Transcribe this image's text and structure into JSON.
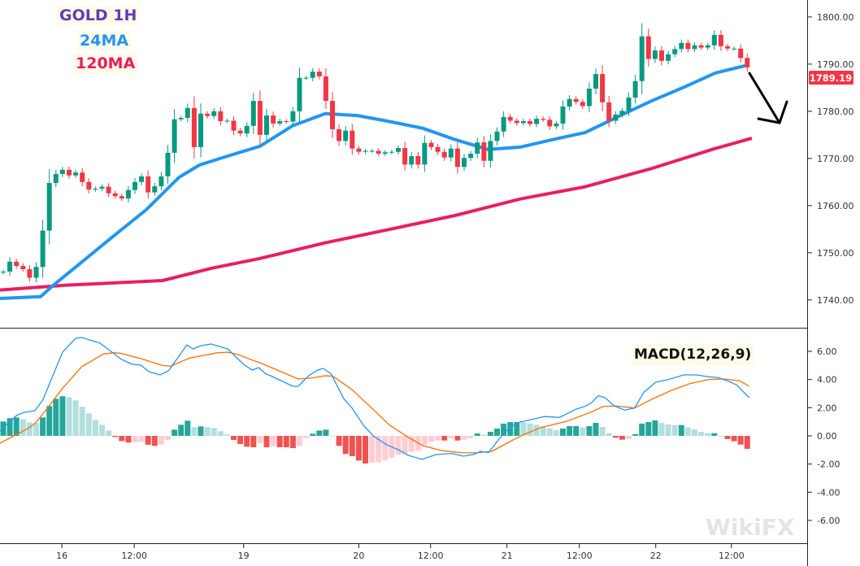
{
  "labels": {
    "title": "GOLD 1H",
    "ma24": "24MA",
    "ma120": "120MA",
    "macd": "MACD(12,26,9)",
    "watermark": "WikiFX"
  },
  "colors": {
    "title": "#673ab7",
    "ma24": "#2196f3",
    "ma120": "#e91e63",
    "up": "#089981",
    "down": "#f23645",
    "hist_up_strong": "#26a69a",
    "hist_up_weak": "#b2dfdb",
    "hist_down_strong": "#ef5350",
    "hist_down_weak": "#ffcdd2",
    "macd": "#2196f3",
    "signal": "#ff6d00",
    "last_price": "#f23645"
  },
  "chart_data": {
    "type": "candlestick",
    "title": "GOLD 1H",
    "last_price": "1789.19",
    "price_axis": {
      "ylim": [
        1734.1,
        1803.6
      ],
      "ticks": [
        "1740.00",
        "1750.00",
        "1760.00",
        "1770.00",
        "1780.00",
        "1790.00",
        "1800.00"
      ]
    },
    "macd_axis": {
      "ylim": [
        -7.62,
        7.56
      ],
      "ticks": [
        "-6.00",
        "-4.00",
        "-2.00",
        "0.00",
        "2.00",
        "4.00",
        "6.00"
      ]
    },
    "x_ticks": [
      {
        "label": "16",
        "index": 8.9
      },
      {
        "label": "12:00",
        "index": 19.9
      },
      {
        "label": "19",
        "index": 36.5
      },
      {
        "label": "20",
        "index": 54
      },
      {
        "label": "12:00",
        "index": 64.9
      },
      {
        "label": "21",
        "index": 76.5
      },
      {
        "label": "12:00",
        "index": 87.5
      },
      {
        "label": "22",
        "index": 99.1
      },
      {
        "label": "12:00",
        "index": 110.6
      }
    ],
    "first_open": 1745.8,
    "close": [
      1746.0,
      1748.1,
      1747.2,
      1746.5,
      1744.7,
      1747.0,
      1754.7,
      1764.8,
      1766.7,
      1767.6,
      1766.4,
      1767.0,
      1765.0,
      1763.4,
      1763.6,
      1764.0,
      1762.6,
      1762.0,
      1761.5,
      1763.3,
      1765.0,
      1766.2,
      1762.8,
      1764.1,
      1766.2,
      1771.2,
      1778.3,
      1778.6,
      1780.7,
      1772.4,
      1779.5,
      1779.0,
      1780.0,
      1777.9,
      1778.0,
      1775.9,
      1775.3,
      1776.9,
      1782.2,
      1775.0,
      1779.1,
      1777.4,
      1777.9,
      1777.8,
      1780.0,
      1787.1,
      1787.1,
      1788.4,
      1787.4,
      1782.2,
      1776.2,
      1773.7,
      1775.9,
      1772.1,
      1771.4,
      1771.6,
      1771.6,
      1771.0,
      1771.3,
      1771.4,
      1772.2,
      1768.7,
      1770.5,
      1768.7,
      1773.3,
      1772.4,
      1771.4,
      1770.2,
      1772.1,
      1768.2,
      1770.1,
      1771.0,
      1773.4,
      1769.5,
      1773.7,
      1775.7,
      1778.8,
      1778.0,
      1777.5,
      1777.9,
      1777.3,
      1778.4,
      1778.2,
      1776.8,
      1777.4,
      1781.0,
      1782.6,
      1782.0,
      1781.1,
      1784.8,
      1787.9,
      1781.9,
      1778.0,
      1779.3,
      1780.1,
      1782.9,
      1786.4,
      1795.9,
      1791.1,
      1792.9,
      1790.7,
      1792.1,
      1793.2,
      1794.5,
      1793.2,
      1794.0,
      1793.5,
      1794.0,
      1796.2,
      1793.8,
      1793.3,
      1793.3,
      1791.3,
      1789.3
    ],
    "ma24": [
      [
        -0.5,
        1740.3
      ],
      [
        5.7,
        1740.7
      ],
      [
        7.5,
        1743
      ],
      [
        11.9,
        1748
      ],
      [
        16.8,
        1753.6
      ],
      [
        21.7,
        1759.1
      ],
      [
        26.7,
        1766
      ],
      [
        29.8,
        1768.6
      ],
      [
        34.1,
        1770.5
      ],
      [
        39,
        1772.6
      ],
      [
        43.9,
        1776.9
      ],
      [
        48.9,
        1779.5
      ],
      [
        53.8,
        1779.1
      ],
      [
        58.8,
        1777.8
      ],
      [
        63.7,
        1776.4
      ],
      [
        68.6,
        1774
      ],
      [
        73.6,
        1771.9
      ],
      [
        78.5,
        1772.4
      ],
      [
        83.5,
        1774
      ],
      [
        88.4,
        1775.5
      ],
      [
        93.3,
        1778.8
      ],
      [
        98.3,
        1782.1
      ],
      [
        103.2,
        1785
      ],
      [
        108.1,
        1788.1
      ],
      [
        113.1,
        1789.8
      ]
    ],
    "ma120": [
      [
        -0.5,
        1742.1
      ],
      [
        9.4,
        1743.1
      ],
      [
        24.2,
        1744.1
      ],
      [
        31.6,
        1746.7
      ],
      [
        39,
        1748.8
      ],
      [
        48.9,
        1752.1
      ],
      [
        58.8,
        1755
      ],
      [
        68.6,
        1757.9
      ],
      [
        78.5,
        1761.4
      ],
      [
        88.4,
        1764
      ],
      [
        98.3,
        1767.8
      ],
      [
        108.1,
        1772.1
      ],
      [
        113.7,
        1774.3
      ]
    ],
    "macd_hist": [
      1.02,
      1.25,
      1.31,
      1.19,
      0.96,
      0.92,
      1.31,
      2.12,
      2.63,
      2.81,
      2.75,
      2.52,
      2.06,
      1.6,
      1.13,
      0.79,
      0.38,
      -0.08,
      -0.37,
      -0.48,
      -0.44,
      -0.42,
      -0.63,
      -0.71,
      -0.63,
      -0.29,
      0.44,
      0.79,
      1.08,
      0.62,
      0.67,
      0.62,
      0.56,
      0.33,
      0.1,
      -0.29,
      -0.58,
      -0.77,
      -0.81,
      -0.52,
      -0.81,
      -0.75,
      -0.81,
      -0.81,
      -0.87,
      -0.71,
      -0.17,
      0.15,
      0.38,
      0.44,
      0.02,
      -0.71,
      -1.29,
      -1.44,
      -1.75,
      -1.96,
      -1.9,
      -1.87,
      -1.73,
      -1.56,
      -1.33,
      -1.29,
      -1.13,
      -1.06,
      -0.67,
      -0.42,
      -0.33,
      -0.33,
      -0.17,
      -0.33,
      -0.27,
      -0.17,
      0.17,
      0.08,
      0.29,
      0.52,
      0.87,
      0.98,
      0.98,
      0.96,
      0.88,
      0.79,
      0.67,
      0.52,
      0.4,
      0.52,
      0.69,
      0.69,
      0.6,
      0.69,
      0.92,
      0.63,
      0.19,
      -0.13,
      -0.27,
      -0.23,
      0.12,
      0.87,
      0.98,
      1.1,
      0.92,
      0.81,
      0.77,
      0.77,
      0.6,
      0.46,
      0.29,
      0.19,
      0.19,
      0,
      -0.23,
      -0.38,
      -0.62,
      -0.92
    ],
    "macd_line": [
      [
        -0.5,
        0.35
      ],
      [
        2.0,
        1.44
      ],
      [
        3.2,
        1.67
      ],
      [
        4.8,
        1.79
      ],
      [
        6.0,
        2.54
      ],
      [
        9.0,
        5.94
      ],
      [
        11.0,
        6.92
      ],
      [
        11.9,
        6.98
      ],
      [
        14.7,
        6.58
      ],
      [
        18.0,
        5.42
      ],
      [
        19.6,
        5.08
      ],
      [
        20.9,
        5.02
      ],
      [
        22.1,
        4.56
      ],
      [
        23.8,
        4.33
      ],
      [
        25.1,
        4.62
      ],
      [
        27.9,
        6.46
      ],
      [
        28.8,
        6.17
      ],
      [
        30.0,
        6.4
      ],
      [
        31.6,
        6.52
      ],
      [
        34.1,
        6.17
      ],
      [
        36.5,
        5.08
      ],
      [
        37.8,
        4.67
      ],
      [
        38.8,
        4.85
      ],
      [
        39.9,
        4.39
      ],
      [
        40.6,
        4.27
      ],
      [
        44.0,
        3.52
      ],
      [
        44.8,
        3.52
      ],
      [
        46.4,
        4.27
      ],
      [
        47.7,
        4.67
      ],
      [
        48.6,
        4.79
      ],
      [
        49.8,
        4.39
      ],
      [
        51.7,
        2.65
      ],
      [
        53.0,
        1.96
      ],
      [
        54.7,
        0.75
      ],
      [
        56.3,
        -0.04
      ],
      [
        58.2,
        -0.62
      ],
      [
        60.1,
        -1.0
      ],
      [
        61.5,
        -1.38
      ],
      [
        63.6,
        -1.67
      ],
      [
        65.7,
        -1.33
      ],
      [
        68.1,
        -1.25
      ],
      [
        69.9,
        -1.44
      ],
      [
        71.4,
        -1.33
      ],
      [
        72.5,
        -1.1
      ],
      [
        73.7,
        -1.19
      ],
      [
        76.1,
        0.25
      ],
      [
        78.0,
        0.92
      ],
      [
        79.8,
        1.12
      ],
      [
        82.2,
        1.37
      ],
      [
        84.5,
        1.31
      ],
      [
        86.9,
        1.88
      ],
      [
        88.3,
        2.08
      ],
      [
        89.3,
        2.33
      ],
      [
        90.4,
        2.85
      ],
      [
        91.4,
        2.71
      ],
      [
        92.8,
        2.13
      ],
      [
        94.4,
        1.83
      ],
      [
        95.9,
        1.98
      ],
      [
        97.3,
        3.1
      ],
      [
        99.1,
        3.81
      ],
      [
        101.0,
        4.0
      ],
      [
        103.4,
        4.33
      ],
      [
        105.3,
        4.33
      ],
      [
        107.2,
        4.19
      ],
      [
        108.6,
        4.13
      ],
      [
        110.0,
        3.9
      ],
      [
        111.4,
        3.62
      ],
      [
        113.3,
        2.71
      ]
    ],
    "signal_line": [
      [
        -0.5,
        -0.52
      ],
      [
        1.6,
        0
      ],
      [
        3.6,
        0.48
      ],
      [
        4.8,
        0.87
      ],
      [
        6.5,
        1.83
      ],
      [
        9.0,
        3.37
      ],
      [
        11.9,
        4.9
      ],
      [
        15.2,
        5.81
      ],
      [
        16.8,
        5.9
      ],
      [
        17.7,
        5.87
      ],
      [
        20.9,
        5.48
      ],
      [
        24.2,
        5.0
      ],
      [
        25.4,
        4.94
      ],
      [
        28.3,
        5.52
      ],
      [
        32.5,
        5.9
      ],
      [
        34.1,
        5.94
      ],
      [
        35.7,
        5.77
      ],
      [
        37.8,
        5.38
      ],
      [
        39.0,
        5.19
      ],
      [
        44.8,
        4.04
      ],
      [
        46.8,
        4.1
      ],
      [
        48.9,
        4.27
      ],
      [
        50.1,
        4.23
      ],
      [
        53.0,
        3.27
      ],
      [
        56.3,
        1.83
      ],
      [
        58.6,
        0.79
      ],
      [
        61.5,
        -0.1
      ],
      [
        63.8,
        -0.71
      ],
      [
        66.7,
        -1.06
      ],
      [
        69.5,
        -1.19
      ],
      [
        71.8,
        -1.21
      ],
      [
        74.2,
        -1.1
      ],
      [
        76.5,
        -0.52
      ],
      [
        78.9,
        0.06
      ],
      [
        81.7,
        0.6
      ],
      [
        85.5,
        1.02
      ],
      [
        89.3,
        1.69
      ],
      [
        91.1,
        2.08
      ],
      [
        93.0,
        2.13
      ],
      [
        95.9,
        1.98
      ],
      [
        98.7,
        2.65
      ],
      [
        101.5,
        3.23
      ],
      [
        104.3,
        3.71
      ],
      [
        107.1,
        4.0
      ],
      [
        109.5,
        4.04
      ],
      [
        111.9,
        3.9
      ],
      [
        113.3,
        3.52
      ]
    ]
  }
}
